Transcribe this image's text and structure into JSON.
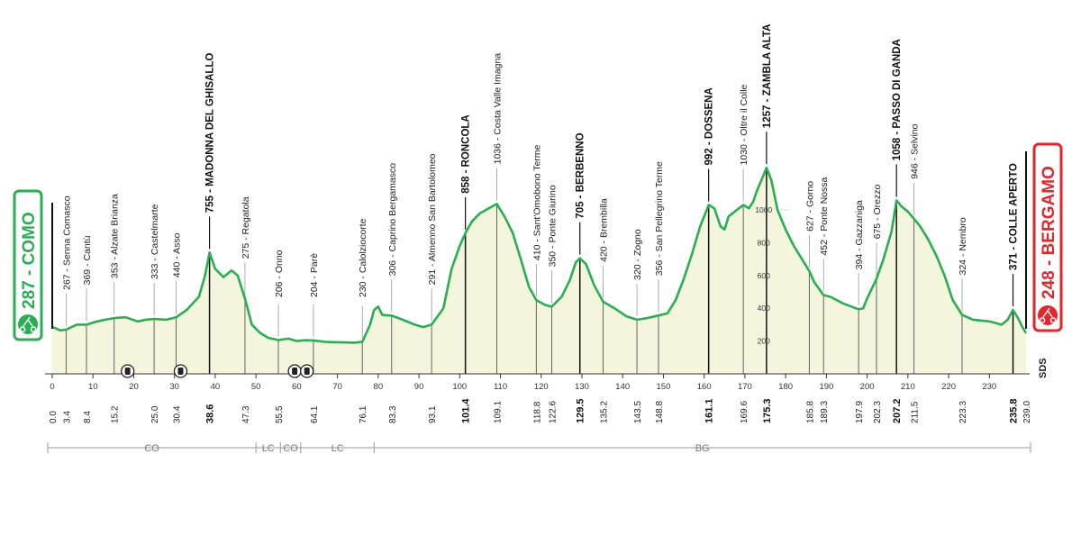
{
  "chart_data": {
    "type": "area",
    "title": "",
    "xlabel": "",
    "ylabel": "",
    "xlim": [
      0,
      239
    ],
    "elevation_ticks": [
      200,
      400,
      600,
      800,
      1000
    ],
    "km_ticks": [
      0,
      10,
      20,
      30,
      40,
      50,
      60,
      70,
      80,
      90,
      100,
      110,
      120,
      130,
      140,
      150,
      160,
      170,
      180,
      190,
      200,
      210,
      220,
      230
    ],
    "fill_color": "#f3f5dd",
    "line_color": "#2bae53",
    "profile": [
      [
        0,
        287
      ],
      [
        2,
        265
      ],
      [
        3.4,
        270
      ],
      [
        6,
        300
      ],
      [
        8.4,
        300
      ],
      [
        11,
        320
      ],
      [
        13,
        330
      ],
      [
        15.2,
        340
      ],
      [
        18,
        345
      ],
      [
        21,
        320
      ],
      [
        23,
        330
      ],
      [
        25,
        335
      ],
      [
        28,
        330
      ],
      [
        30.4,
        345
      ],
      [
        33,
        390
      ],
      [
        36,
        470
      ],
      [
        37.5,
        600
      ],
      [
        38.6,
        740
      ],
      [
        40,
        640
      ],
      [
        42,
        590
      ],
      [
        44,
        630
      ],
      [
        45.5,
        600
      ],
      [
        47.3,
        460
      ],
      [
        49,
        300
      ],
      [
        51,
        250
      ],
      [
        53,
        220
      ],
      [
        55.5,
        206
      ],
      [
        58,
        215
      ],
      [
        60,
        200
      ],
      [
        62,
        205
      ],
      [
        64.1,
        204
      ],
      [
        67,
        195
      ],
      [
        70,
        193
      ],
      [
        74,
        190
      ],
      [
        76.1,
        195
      ],
      [
        78,
        300
      ],
      [
        79,
        390
      ],
      [
        80,
        410
      ],
      [
        81,
        360
      ],
      [
        83.3,
        355
      ],
      [
        86,
        330
      ],
      [
        89,
        300
      ],
      [
        91,
        285
      ],
      [
        93.1,
        300
      ],
      [
        96,
        400
      ],
      [
        98,
        640
      ],
      [
        100,
        780
      ],
      [
        101.4,
        858
      ],
      [
        103,
        930
      ],
      [
        105,
        980
      ],
      [
        109.1,
        1036
      ],
      [
        111,
        960
      ],
      [
        113,
        860
      ],
      [
        115,
        700
      ],
      [
        117,
        530
      ],
      [
        118.8,
        450
      ],
      [
        121,
        420
      ],
      [
        122.6,
        410
      ],
      [
        125,
        470
      ],
      [
        127,
        570
      ],
      [
        128.5,
        680
      ],
      [
        129.5,
        705
      ],
      [
        131,
        670
      ],
      [
        133,
        540
      ],
      [
        135.2,
        440
      ],
      [
        138,
        400
      ],
      [
        141,
        350
      ],
      [
        143.5,
        330
      ],
      [
        146,
        340
      ],
      [
        148.8,
        356
      ],
      [
        151,
        370
      ],
      [
        153,
        450
      ],
      [
        155,
        580
      ],
      [
        157,
        730
      ],
      [
        159,
        900
      ],
      [
        160,
        960
      ],
      [
        161.1,
        1030
      ],
      [
        162.5,
        1010
      ],
      [
        164,
        900
      ],
      [
        165,
        880
      ],
      [
        166,
        960
      ],
      [
        168,
        1000
      ],
      [
        169.6,
        1030
      ],
      [
        171,
        1010
      ],
      [
        172,
        1050
      ],
      [
        173,
        1120
      ],
      [
        175.3,
        1257
      ],
      [
        176.5,
        1180
      ],
      [
        178,
        1000
      ],
      [
        180,
        880
      ],
      [
        182,
        780
      ],
      [
        184,
        700
      ],
      [
        185.8,
        627
      ],
      [
        187,
        560
      ],
      [
        189.3,
        480
      ],
      [
        191,
        470
      ],
      [
        194,
        430
      ],
      [
        197.9,
        394
      ],
      [
        199,
        400
      ],
      [
        200,
        460
      ],
      [
        202.3,
        580
      ],
      [
        204,
        700
      ],
      [
        206,
        870
      ],
      [
        207.2,
        1058
      ],
      [
        208.5,
        1020
      ],
      [
        210,
        990
      ],
      [
        211.5,
        946
      ],
      [
        213,
        900
      ],
      [
        215,
        820
      ],
      [
        217,
        720
      ],
      [
        219,
        600
      ],
      [
        221,
        450
      ],
      [
        223.3,
        360
      ],
      [
        226,
        330
      ],
      [
        230,
        320
      ],
      [
        233,
        300
      ],
      [
        234.5,
        330
      ],
      [
        235.8,
        390
      ],
      [
        237,
        340
      ],
      [
        238,
        290
      ],
      [
        239,
        248
      ]
    ],
    "points": [
      {
        "km": "0.0",
        "km_v": 0,
        "alt": "",
        "name": ""
      },
      {
        "km": "3.4",
        "km_v": 3.4,
        "alt": "267",
        "name": "Senna Comasco"
      },
      {
        "km": "8.4",
        "km_v": 8.4,
        "alt": "369",
        "name": "Cantù"
      },
      {
        "km": "15.2",
        "km_v": 15.2,
        "alt": "353",
        "name": "Alzate Brianza"
      },
      {
        "km": "25.0",
        "km_v": 25.0,
        "alt": "333",
        "name": "Castelmarte"
      },
      {
        "km": "30.4",
        "km_v": 30.4,
        "alt": "440",
        "name": "Asso"
      },
      {
        "km": "38.6",
        "km_v": 38.6,
        "alt": "755",
        "name": "MADONNA DEL GHISALLO",
        "bold": true
      },
      {
        "km": "47.3",
        "km_v": 47.3,
        "alt": "275",
        "name": "Regatola"
      },
      {
        "km": "55.5",
        "km_v": 55.5,
        "alt": "206",
        "name": "Onno"
      },
      {
        "km": "64.1",
        "km_v": 64.1,
        "alt": "204",
        "name": "Parè"
      },
      {
        "km": "76.1",
        "km_v": 76.1,
        "alt": "230",
        "name": "Calolziocorte"
      },
      {
        "km": "83.3",
        "km_v": 83.3,
        "alt": "306",
        "name": "Caprino Bergamasco"
      },
      {
        "km": "93.1",
        "km_v": 93.1,
        "alt": "291",
        "name": "Almenno San Bartolomeo"
      },
      {
        "km": "101.4",
        "km_v": 101.4,
        "alt": "858",
        "name": "RONCOLA",
        "bold": true
      },
      {
        "km": "109.1",
        "km_v": 109.1,
        "alt": "1036",
        "name": "Costa Valle Imagna"
      },
      {
        "km": "118.8",
        "km_v": 118.8,
        "alt": "410",
        "name": "Sant'Omobono Terme"
      },
      {
        "km": "122.6",
        "km_v": 122.6,
        "alt": "350",
        "name": "Ponte Giurino"
      },
      {
        "km": "129.5",
        "km_v": 129.5,
        "alt": "705",
        "name": "BERBENNO",
        "bold": true
      },
      {
        "km": "135.2",
        "km_v": 135.2,
        "alt": "420",
        "name": "Brembilla"
      },
      {
        "km": "143.5",
        "km_v": 143.5,
        "alt": "320",
        "name": "Zogno"
      },
      {
        "km": "148.8",
        "km_v": 148.8,
        "alt": "356",
        "name": "San Pellegrino Terme"
      },
      {
        "km": "161.1",
        "km_v": 161.1,
        "alt": "992",
        "name": "DOSSENA",
        "bold": true
      },
      {
        "km": "169.6",
        "km_v": 169.6,
        "alt": "1030",
        "name": "Oltre il Colle"
      },
      {
        "km": "175.3",
        "km_v": 175.3,
        "alt": "1257",
        "name": "ZAMBLA ALTA",
        "bold": true
      },
      {
        "km": "185.8",
        "km_v": 185.8,
        "alt": "627",
        "name": "Gorno"
      },
      {
        "km": "189.3",
        "km_v": 189.3,
        "alt": "452",
        "name": "Ponte Nossa"
      },
      {
        "km": "197.9",
        "km_v": 197.9,
        "alt": "394",
        "name": "Gazzaniga"
      },
      {
        "km": "202.3",
        "km_v": 202.3,
        "alt": "675",
        "name": "Orezzo"
      },
      {
        "km": "207.2",
        "km_v": 207.2,
        "alt": "1058",
        "name": "PASSO DI GANDA",
        "bold": true
      },
      {
        "km": "211.5",
        "km_v": 211.5,
        "alt": "946",
        "name": "Selvino"
      },
      {
        "km": "223.3",
        "km_v": 223.3,
        "alt": "324",
        "name": "Nembro"
      },
      {
        "km": "235.8",
        "km_v": 235.8,
        "alt": "371",
        "name": "COLLE APERTO",
        "bold": true
      },
      {
        "km": "239.0",
        "km_v": 239,
        "alt": "",
        "name": ""
      }
    ],
    "start": {
      "label": "287 - COMO",
      "color": "#2bae53"
    },
    "finish": {
      "label": "248 - BERGAMO",
      "color": "#e3262b"
    },
    "provinces": [
      {
        "name": "CO",
        "from": 0,
        "to": 50
      },
      {
        "name": "LC",
        "from": 50,
        "to": 56
      },
      {
        "name": "CO",
        "from": 56,
        "to": 61
      },
      {
        "name": "LC",
        "from": 61,
        "to": 79
      },
      {
        "name": "BG",
        "from": 79,
        "to": 239
      }
    ],
    "intermediate_sprints_km": [
      18.5,
      31.5,
      59.5,
      62.5
    ],
    "footer_mark": "SDS"
  }
}
